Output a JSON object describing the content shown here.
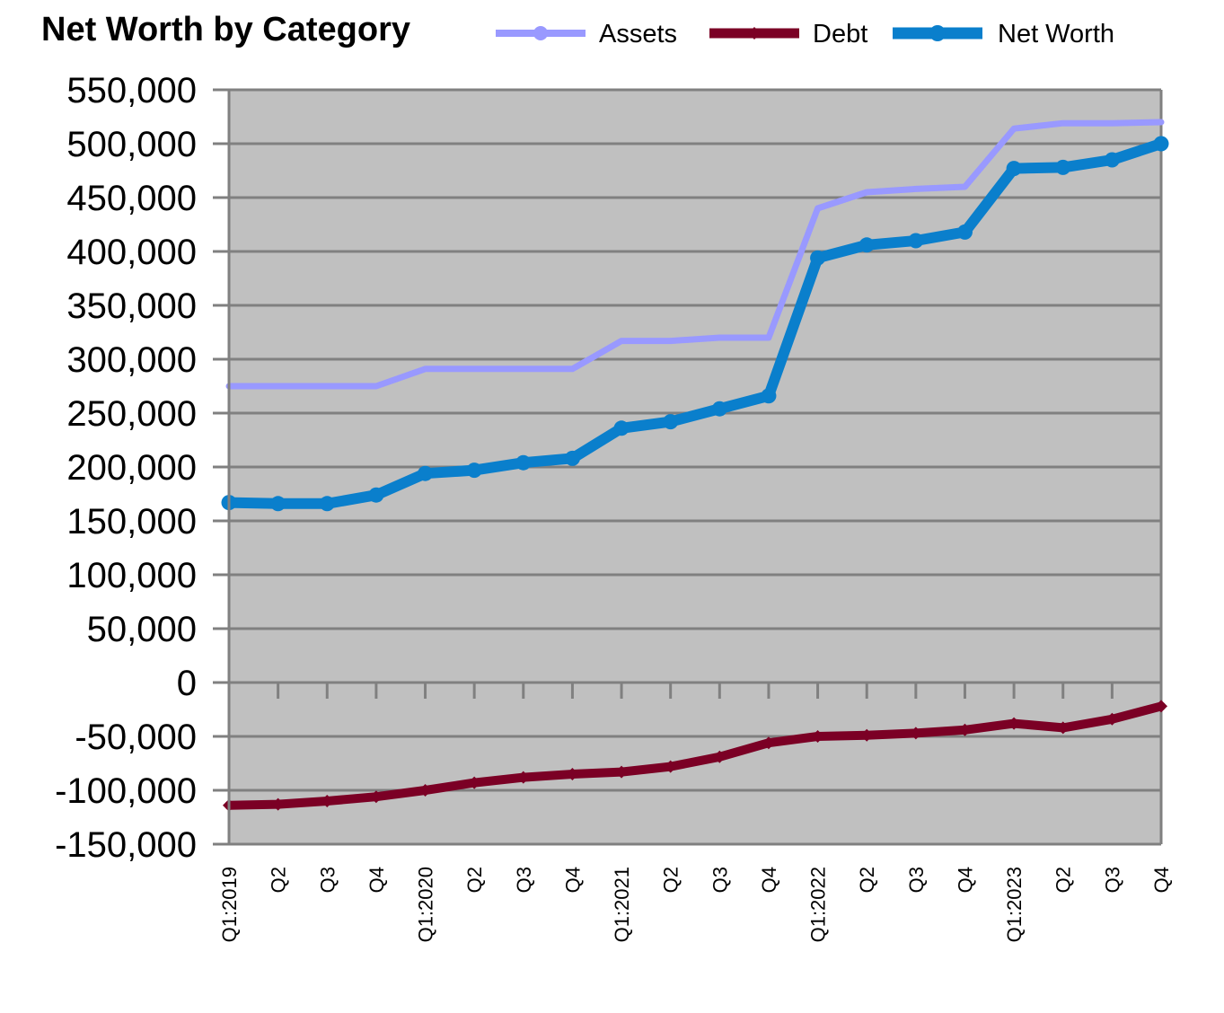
{
  "chart_data": {
    "type": "line",
    "title": "Net Worth by Category",
    "xlabel": "",
    "ylabel": "",
    "ylim": [
      -150000,
      550000
    ],
    "yticks": [
      550000,
      500000,
      450000,
      400000,
      350000,
      300000,
      250000,
      200000,
      150000,
      100000,
      50000,
      0,
      -50000,
      -100000,
      -150000
    ],
    "ytick_labels": [
      "550,000",
      "500,000",
      "450,000",
      "400,000",
      "350,000",
      "300,000",
      "250,000",
      "200,000",
      "150,000",
      "100,000",
      "50,000",
      "0",
      "-50,000",
      "-100,000",
      "-150,000"
    ],
    "grid": true,
    "legend_position": "top",
    "categories": [
      "Q1:2019",
      "Q2",
      "Q3",
      "Q4",
      "Q1:2020",
      "Q2",
      "Q3",
      "Q4",
      "Q1:2021",
      "Q2",
      "Q3",
      "Q4",
      "Q1:2022",
      "Q2",
      "Q3",
      "Q4",
      "Q1:2023",
      "Q2",
      "Q3",
      "Q4"
    ],
    "series": [
      {
        "name": "Assets",
        "color": "#9999ff",
        "values": [
          275000,
          275000,
          275000,
          275000,
          291000,
          291000,
          291000,
          291000,
          317000,
          317000,
          320000,
          320000,
          440000,
          455000,
          458000,
          460000,
          514000,
          519000,
          519000,
          520000
        ]
      },
      {
        "name": "Debt",
        "color": "#7b0025",
        "values": [
          -114000,
          -113000,
          -110000,
          -106000,
          -100000,
          -93000,
          -88000,
          -85000,
          -83000,
          -78000,
          -69000,
          -56000,
          -50000,
          -49000,
          -47000,
          -44000,
          -38000,
          -42000,
          -34000,
          -22000
        ]
      },
      {
        "name": "Net Worth",
        "color": "#0a7fcc",
        "values": [
          167000,
          166000,
          166000,
          174000,
          194000,
          197000,
          204000,
          208000,
          236000,
          242000,
          254000,
          266000,
          394000,
          406000,
          410000,
          418000,
          477000,
          478000,
          485000,
          500000
        ]
      }
    ]
  }
}
